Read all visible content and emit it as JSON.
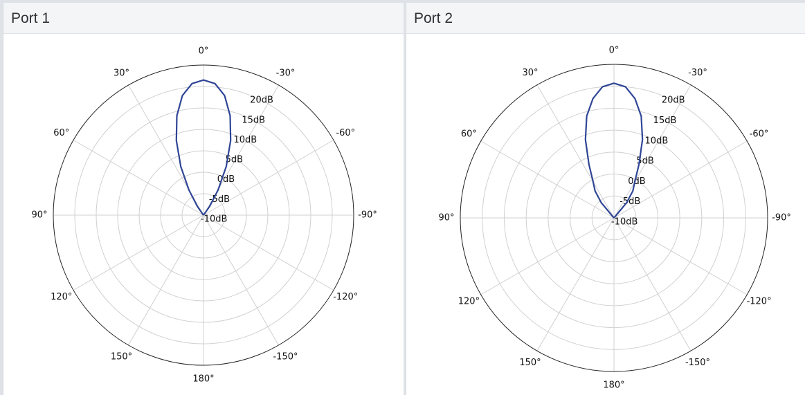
{
  "panels": [
    {
      "title": "Port 1"
    },
    {
      "title": "Port 2"
    }
  ],
  "colors": {
    "series": "#2f4596",
    "grid": "#d0d0d0",
    "outline": "#222222"
  },
  "chart_data": [
    {
      "type": "polar-line",
      "title": "Port 1",
      "angular_tick_labels": [
        "0°",
        "-30°",
        "-60°",
        "-90°",
        "-120°",
        "-150°",
        "180°",
        "150°",
        "120°",
        "90°",
        "60°",
        "30°"
      ],
      "angular_ticks_deg": [
        0,
        -30,
        -60,
        -90,
        -120,
        -150,
        180,
        150,
        120,
        90,
        60,
        30
      ],
      "radial_tick_labels": [
        "-10dB",
        "-5dB",
        "0dB",
        "5dB",
        "10dB",
        "15dB",
        "20dB"
      ],
      "radial_ticks_db": [
        -10,
        -5,
        0,
        5,
        10,
        15,
        20
      ],
      "rlim_db": [
        -10,
        25
      ],
      "rlabel_position_deg": -22.5,
      "grid": true,
      "series": [
        {
          "angle_deg": [
            -40,
            -35,
            -30,
            -25,
            -20,
            -15,
            -10,
            -5,
            0,
            5,
            10,
            15,
            20,
            25,
            30,
            35,
            40
          ],
          "gain_db": [
            -10,
            -7.5,
            -3.2,
            2.5,
            8.5,
            14.0,
            18.3,
            20.8,
            21.5,
            20.8,
            18.3,
            14.0,
            8.5,
            2.5,
            -3.2,
            -7.5,
            -10
          ]
        }
      ]
    },
    {
      "type": "polar-line",
      "title": "Port 2",
      "angular_tick_labels": [
        "0°",
        "-30°",
        "-60°",
        "-90°",
        "-120°",
        "-150°",
        "180°",
        "150°",
        "120°",
        "90°",
        "60°",
        "30°"
      ],
      "angular_ticks_deg": [
        0,
        -30,
        -60,
        -90,
        -120,
        -150,
        180,
        150,
        120,
        90,
        60,
        30
      ],
      "radial_tick_labels": [
        "-10dB",
        "-5dB",
        "0dB",
        "5dB",
        "10dB",
        "15dB",
        "20dB"
      ],
      "radial_ticks_db": [
        -10,
        -5,
        0,
        5,
        10,
        15,
        20
      ],
      "rlim_db": [
        -10,
        25
      ],
      "rlabel_position_deg": -22.5,
      "grid": true,
      "series": [
        {
          "angle_deg": [
            -45,
            -40,
            -35,
            -30,
            -25,
            -20,
            -15,
            -10,
            -5,
            0,
            5,
            10,
            15,
            20,
            25,
            30,
            35,
            40,
            45
          ],
          "gain_db": [
            -10,
            -5.5,
            -2.5,
            -0.5,
            3.5,
            9.0,
            14.0,
            17.6,
            20.0,
            20.7,
            20.0,
            17.6,
            14.0,
            9.0,
            3.5,
            -0.5,
            -2.5,
            -5.5,
            -10
          ]
        }
      ]
    }
  ]
}
